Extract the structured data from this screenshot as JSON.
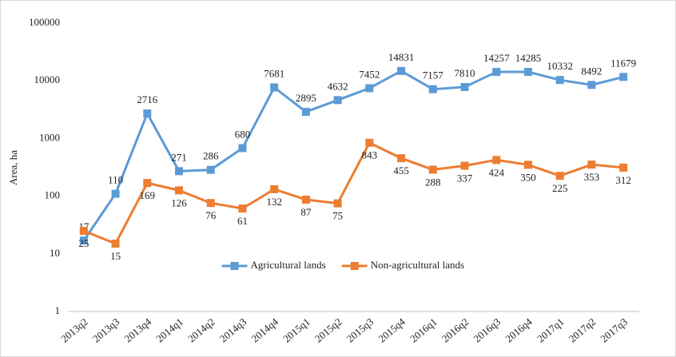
{
  "chart_data": {
    "type": "line",
    "y_label": "Area, ha",
    "categories": [
      "2013q2",
      "2013q3",
      "2013q4",
      "2014q1",
      "2014q2",
      "2014q3",
      "2014q4",
      "2015q1",
      "2015q2",
      "2015q3",
      "2015q4",
      "2016q1",
      "2016q2",
      "2016q3",
      "2016q4",
      "2017q1",
      "2017q2",
      "2017q3"
    ],
    "series": [
      {
        "name": "Agricultural lands",
        "color": "#5b9bd5",
        "label_side": "above",
        "values": [
          17,
          110,
          2716,
          271,
          286,
          680,
          7681,
          2895,
          4632,
          7452,
          14831,
          7157,
          7810,
          14257,
          14285,
          10332,
          8492,
          11679
        ]
      },
      {
        "name": "Non-agricultural lands",
        "color": "#ed7d31",
        "label_side": "below",
        "values": [
          25,
          15,
          169,
          126,
          76,
          61,
          132,
          87,
          75,
          843,
          455,
          288,
          337,
          424,
          350,
          225,
          353,
          312
        ]
      }
    ],
    "ylim": [
      1,
      100000
    ],
    "yticks": [
      1,
      10,
      100,
      1000,
      10000,
      100000
    ],
    "log_y": true,
    "grid": false,
    "legend": "lower center"
  }
}
